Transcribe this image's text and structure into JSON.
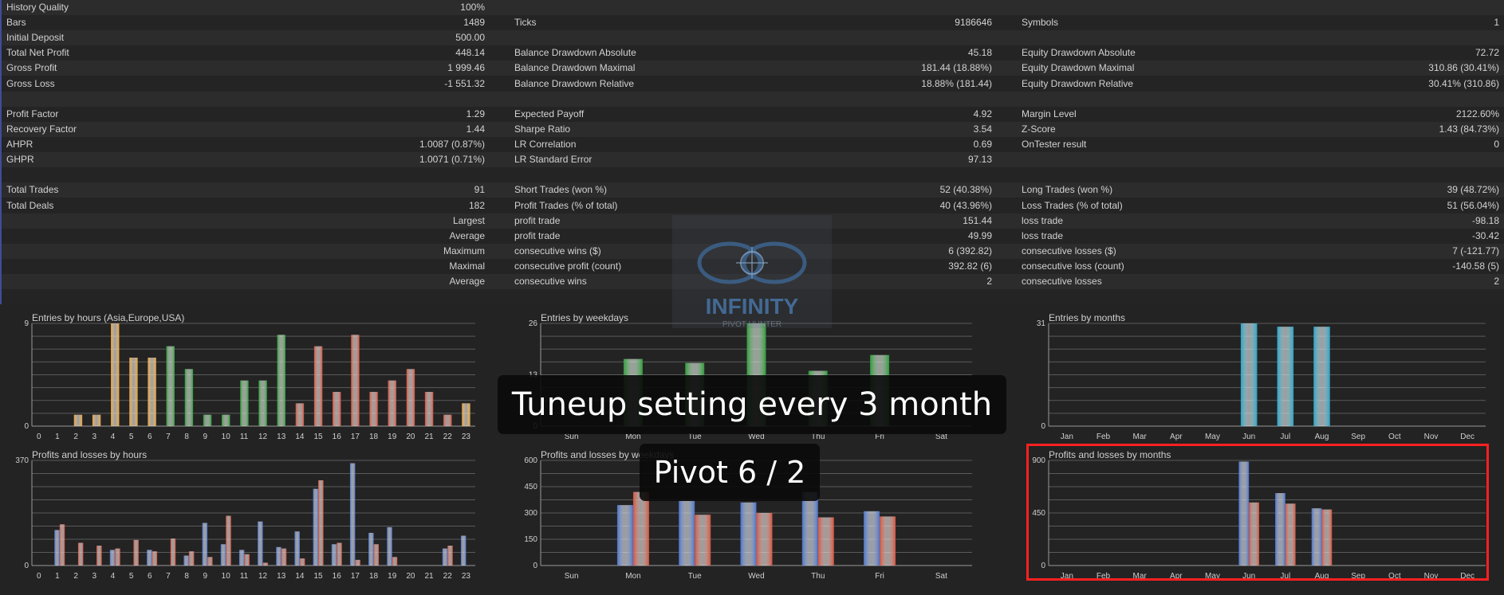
{
  "stats": {
    "rows": [
      [
        {
          "l": "History Quality",
          "v": "100%"
        },
        {
          "bar": true
        },
        null
      ],
      [
        {
          "l": "Bars",
          "v": "1489"
        },
        {
          "l": "Ticks",
          "v": "9186646"
        },
        {
          "l": "Symbols",
          "v": "1"
        }
      ],
      [
        {
          "l": "Initial Deposit",
          "v": "500.00"
        },
        null,
        null
      ],
      [
        {
          "l": "Total Net Profit",
          "v": "448.14"
        },
        {
          "l": "Balance Drawdown Absolute",
          "v": "45.18"
        },
        {
          "l": "Equity Drawdown Absolute",
          "v": "72.72"
        }
      ],
      [
        {
          "l": "Gross Profit",
          "v": "1 999.46"
        },
        {
          "l": "Balance Drawdown Maximal",
          "v": "181.44 (18.88%)"
        },
        {
          "l": "Equity Drawdown Maximal",
          "v": "310.86 (30.41%)"
        }
      ],
      [
        {
          "l": "Gross Loss",
          "v": "-1 551.32"
        },
        {
          "l": "Balance Drawdown Relative",
          "v": "18.88% (181.44)"
        },
        {
          "l": "Equity Drawdown Relative",
          "v": "30.41% (310.86)"
        }
      ],
      [
        null,
        null,
        null
      ],
      [
        {
          "l": "Profit Factor",
          "v": "1.29"
        },
        {
          "l": "Expected Payoff",
          "v": "4.92"
        },
        {
          "l": "Margin Level",
          "v": "2122.60%"
        }
      ],
      [
        {
          "l": "Recovery Factor",
          "v": "1.44"
        },
        {
          "l": "Sharpe Ratio",
          "v": "3.54"
        },
        {
          "l": "Z-Score",
          "v": "1.43 (84.73%)"
        }
      ],
      [
        {
          "l": "AHPR",
          "v": "1.0087 (0.87%)"
        },
        {
          "l": "LR Correlation",
          "v": "0.69"
        },
        {
          "l": "OnTester result",
          "v": "0"
        }
      ],
      [
        {
          "l": "GHPR",
          "v": "1.0071 (0.71%)"
        },
        {
          "l": "LR Standard Error",
          "v": "97.13"
        },
        null
      ],
      [
        null,
        null,
        null
      ],
      [
        {
          "l": "Total Trades",
          "v": "91"
        },
        {
          "l": "Short Trades (won %)",
          "v": "52 (40.38%)"
        },
        {
          "l": "Long Trades (won %)",
          "v": "39 (48.72%)"
        }
      ],
      [
        {
          "l": "Total Deals",
          "v": "182"
        },
        {
          "l": "Profit Trades (% of total)",
          "v": "40 (43.96%)"
        },
        {
          "l": "Loss Trades (% of total)",
          "v": "51 (56.04%)"
        }
      ],
      [
        {
          "v": "Largest"
        },
        {
          "l": "profit trade",
          "v": "151.44"
        },
        {
          "l": "loss trade",
          "v": "-98.18"
        }
      ],
      [
        {
          "v": "Average"
        },
        {
          "l": "profit trade",
          "v": "49.99"
        },
        {
          "l": "loss trade",
          "v": "-30.42"
        }
      ],
      [
        {
          "v": "Maximum"
        },
        {
          "l": "consecutive wins ($)",
          "v": "6 (392.82)"
        },
        {
          "l": "consecutive losses ($)",
          "v": "7 (-121.77)"
        }
      ],
      [
        {
          "v": "Maximal"
        },
        {
          "l": "consecutive profit (count)",
          "v": "392.82 (6)"
        },
        {
          "l": "consecutive loss (count)",
          "v": "-140.58 (5)"
        }
      ],
      [
        {
          "v": "Average"
        },
        {
          "l": "consecutive wins",
          "v": "2"
        },
        {
          "l": "consecutive losses",
          "v": "2"
        }
      ],
      [
        null,
        null,
        null
      ]
    ],
    "history_quality_fraction": 1.0
  },
  "colors": {
    "orange": "#e8a13a",
    "green": "#2f9a3a",
    "red": "#d0533f",
    "teal": "#2ba3c4",
    "blue": "#4a72c8",
    "grid": "#5a5a5a",
    "highlight": "#ff2020"
  },
  "chart_data": [
    {
      "type": "bar",
      "title": "Entries by hours (Asia,Europe,USA)",
      "categories": [
        "0",
        "1",
        "2",
        "3",
        "4",
        "5",
        "6",
        "7",
        "8",
        "9",
        "10",
        "11",
        "12",
        "13",
        "14",
        "15",
        "16",
        "17",
        "18",
        "19",
        "20",
        "21",
        "22",
        "23"
      ],
      "ylim": [
        0,
        9
      ],
      "ytick_labels": [
        "0",
        "9"
      ],
      "values": [
        0,
        0,
        1,
        1,
        9,
        6,
        6,
        7,
        5,
        1,
        1,
        4,
        4,
        8,
        2,
        7,
        3,
        8,
        3,
        4,
        5,
        3,
        1,
        2
      ],
      "bar_colors": [
        "orange",
        "orange",
        "orange",
        "orange",
        "orange",
        "orange",
        "orange",
        "green",
        "green",
        "green",
        "green",
        "green",
        "green",
        "green",
        "red",
        "red",
        "red",
        "red",
        "red",
        "red",
        "red",
        "red",
        "red",
        "orange"
      ]
    },
    {
      "type": "bar",
      "title": "Entries by weekdays",
      "categories": [
        "Sun",
        "Mon",
        "Tue",
        "Wed",
        "Thu",
        "Fri",
        "Sat"
      ],
      "ylim": [
        0,
        26
      ],
      "ytick_labels": [
        "0",
        "13",
        "26"
      ],
      "values": [
        0,
        17,
        16,
        26,
        14,
        18,
        0
      ],
      "bar_colors": [
        "green",
        "green",
        "green",
        "green",
        "green",
        "green",
        "green"
      ]
    },
    {
      "type": "bar",
      "title": "Entries by months",
      "categories": [
        "Jan",
        "Feb",
        "Mar",
        "Apr",
        "May",
        "Jun",
        "Jul",
        "Aug",
        "Sep",
        "Oct",
        "Nov",
        "Dec"
      ],
      "ylim": [
        0,
        31
      ],
      "ytick_labels": [
        "0",
        "31"
      ],
      "values": [
        0,
        0,
        0,
        0,
        0,
        31,
        30,
        30,
        0,
        0,
        0,
        0
      ],
      "bar_colors": [
        "teal",
        "teal",
        "teal",
        "teal",
        "teal",
        "teal",
        "teal",
        "teal",
        "teal",
        "teal",
        "teal",
        "teal"
      ]
    },
    {
      "type": "bar",
      "title": "Profits and losses by hours",
      "categories": [
        "0",
        "1",
        "2",
        "3",
        "4",
        "5",
        "6",
        "7",
        "8",
        "9",
        "10",
        "11",
        "12",
        "13",
        "14",
        "15",
        "16",
        "17",
        "18",
        "19",
        "20",
        "21",
        "22",
        "23"
      ],
      "ylim": [
        0,
        370
      ],
      "ytick_labels": [
        "0",
        "370"
      ],
      "series": [
        {
          "color": "blue",
          "values": [
            0,
            125,
            0,
            0,
            55,
            0,
            55,
            0,
            35,
            150,
            75,
            55,
            155,
            65,
            120,
            270,
            75,
            360,
            115,
            135,
            0,
            0,
            60,
            105
          ]
        },
        {
          "color": "red",
          "values": [
            0,
            145,
            80,
            70,
            60,
            90,
            50,
            95,
            50,
            30,
            175,
            40,
            10,
            60,
            25,
            300,
            80,
            20,
            75,
            30,
            0,
            0,
            70,
            0
          ]
        }
      ]
    },
    {
      "type": "bar",
      "title": "Profits and losses by weekdays",
      "categories": [
        "Sun",
        "Mon",
        "Tue",
        "Wed",
        "Thu",
        "Fri",
        "Sat"
      ],
      "ylim": [
        0,
        600
      ],
      "ytick_labels": [
        "0",
        "150",
        "300",
        "450",
        "600"
      ],
      "series": [
        {
          "color": "blue",
          "values": [
            0,
            345,
            370,
            360,
            420,
            310,
            0
          ]
        },
        {
          "color": "red",
          "values": [
            0,
            420,
            290,
            300,
            275,
            280,
            0
          ]
        }
      ]
    },
    {
      "type": "bar",
      "title": "Profits and losses by months",
      "categories": [
        "Jan",
        "Feb",
        "Mar",
        "Apr",
        "May",
        "Jun",
        "Jul",
        "Aug",
        "Sep",
        "Oct",
        "Nov",
        "Dec"
      ],
      "ylim": [
        0,
        900
      ],
      "ytick_labels": [
        "0",
        "450",
        "900"
      ],
      "series": [
        {
          "color": "blue",
          "values": [
            0,
            0,
            0,
            0,
            0,
            890,
            620,
            490,
            0,
            0,
            0,
            0
          ]
        },
        {
          "color": "red",
          "values": [
            0,
            0,
            0,
            0,
            0,
            540,
            530,
            480,
            0,
            0,
            0,
            0
          ]
        }
      ]
    }
  ],
  "overlay": {
    "headline": "Tuneup setting every 3 month",
    "subline": "Pivot 6 / 2"
  },
  "logo": {
    "text": "INFINITY",
    "subtext": "PIVOT HUNTER"
  }
}
